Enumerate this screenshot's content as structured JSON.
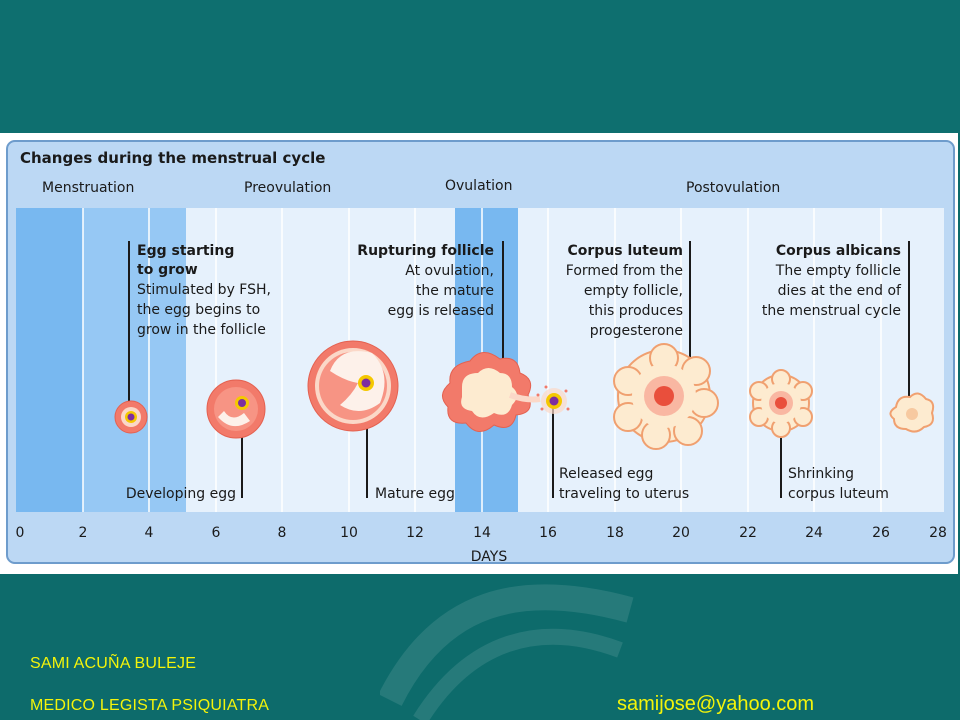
{
  "colors": {
    "background": "#0d6b6b",
    "footer_text": "#f4f40a",
    "panel_bg": "#bcd8f4",
    "panel_border": "#6e9ccc",
    "menstruation_band": "#78b8f0",
    "chart_area": "#e6f1fc",
    "follicle": "#f27a6a",
    "follicle_inner": "#fbd8c8",
    "egg": "#7d2ea0",
    "egg_ring": "#f5c800",
    "corpus": "#fdebd0",
    "corpus_core": "#e94f3c"
  },
  "diagram": {
    "title": "Changes during the menstrual cycle",
    "phases": [
      "Menstruation",
      "Preovulation",
      "Ovulation",
      "Postovulation"
    ],
    "axis_label": "DAYS",
    "ticks": [
      "0",
      "2",
      "4",
      "6",
      "8",
      "10",
      "12",
      "14",
      "16",
      "18",
      "20",
      "22",
      "24",
      "26",
      "28"
    ],
    "callouts": {
      "egg_starting": {
        "title": [
          "Egg starting",
          "to grow"
        ],
        "lines": [
          "Stimulated by FSH,",
          "the egg begins to",
          "grow in the follicle"
        ]
      },
      "rupturing": {
        "title": [
          "Rupturing follicle"
        ],
        "lines": [
          "At ovulation,",
          "the mature",
          "egg is released"
        ]
      },
      "corpus_luteum": {
        "title": [
          "Corpus luteum"
        ],
        "lines": [
          "Formed from the",
          "empty follicle,",
          "this produces",
          "progesterone"
        ]
      },
      "corpus_albicans": {
        "title": [
          "Corpus albicans"
        ],
        "lines": [
          "The empty follicle",
          "dies at the end of",
          "the menstrual cycle"
        ]
      }
    },
    "bottom_labels": {
      "developing": [
        "Developing egg"
      ],
      "mature": [
        "Mature egg"
      ],
      "released": [
        "Released egg",
        "traveling to uterus"
      ],
      "shrinking": [
        "Shrinking",
        "corpus luteum"
      ]
    }
  },
  "footer": {
    "author": "SAMI ACUÑA BULEJE",
    "role": "MEDICO LEGISTA  PSIQUIATRA",
    "email": "samijose@yahoo.com"
  }
}
